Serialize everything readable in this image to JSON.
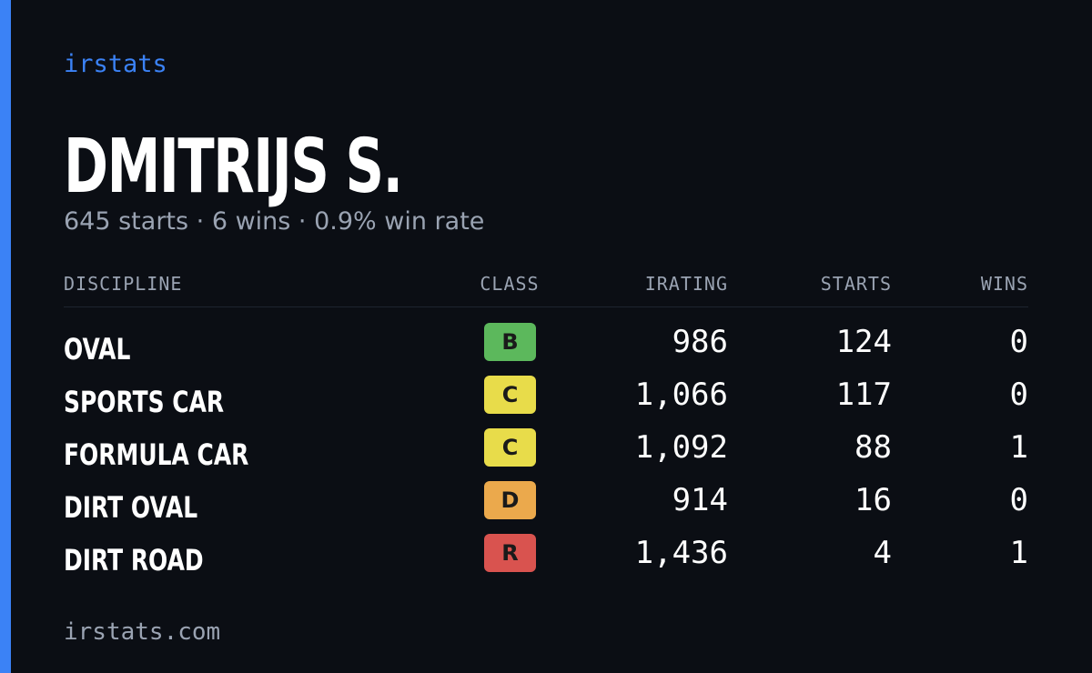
{
  "header": {
    "brand": "irstats",
    "name": "DMITRIJS S.",
    "subtitle": "645 starts · 6 wins · 0.9% win rate"
  },
  "table": {
    "columns": [
      "DISCIPLINE",
      "CLASS",
      "IRATING",
      "STARTS",
      "WINS"
    ],
    "rows": [
      [
        "OVAL",
        "B",
        "986",
        "124",
        "0"
      ],
      [
        "SPORTS CAR",
        "C",
        "1,066",
        "117",
        "0"
      ],
      [
        "FORMULA CAR",
        "C",
        "1,092",
        "88",
        "1"
      ],
      [
        "DIRT OVAL",
        "D",
        "914",
        "16",
        "0"
      ],
      [
        "DIRT ROAD",
        "R",
        "1,436",
        "4",
        "1"
      ]
    ],
    "class_colors": {
      "B": "#5cb85c",
      "C": "#e8dc4a",
      "D": "#eba94c",
      "R": "#d9534f"
    }
  },
  "footer": {
    "site": "irstats.com"
  }
}
